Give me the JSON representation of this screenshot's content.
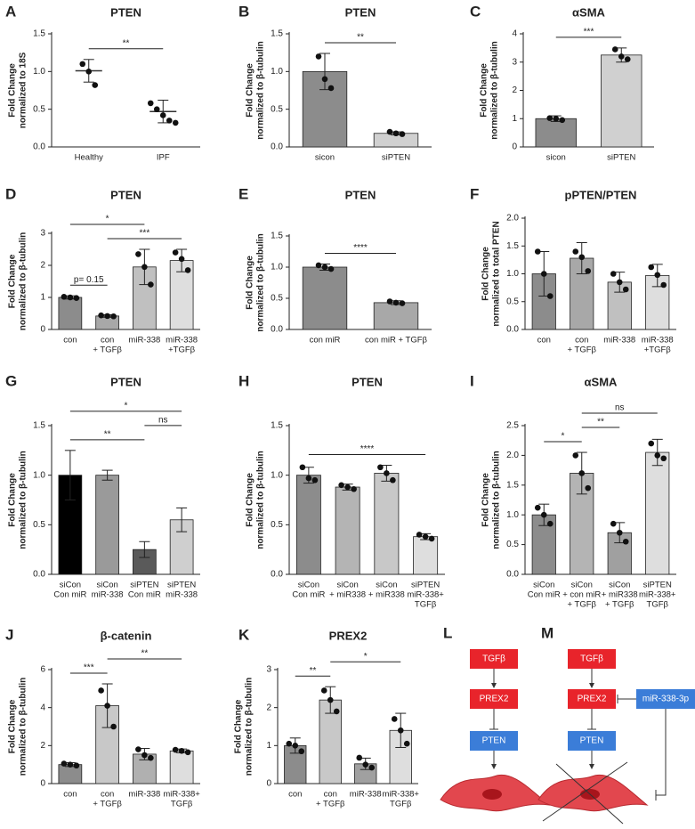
{
  "chart_data": [
    {
      "type": "dot",
      "panel": "A",
      "title": "PTEN",
      "ylabel": [
        "Fold Change",
        "normalized to 18S"
      ],
      "categories": [
        [
          "Healthy"
        ],
        [
          "IPF"
        ]
      ],
      "values": [
        1.01,
        0.47
      ],
      "errors": [
        0.15,
        0.15
      ],
      "points": [
        [
          1.1,
          1.0,
          0.82
        ],
        [
          0.58,
          0.5,
          0.42,
          0.35,
          0.32
        ]
      ],
      "colors": [
        "#333333",
        "#333333"
      ],
      "ylim": [
        0,
        1.5
      ],
      "yticks": [
        {
          "value": 0,
          "label": "0.0"
        },
        0.5,
        {
          "value": 1,
          "label": "1.0"
        },
        1.5
      ],
      "annotations": [
        {
          "text": "**",
          "between": [
            0,
            1
          ]
        }
      ]
    },
    {
      "type": "bar",
      "panel": "B",
      "title": "PTEN",
      "ylabel": [
        "Fold Change",
        "normalized to β-tubulin"
      ],
      "categories": [
        [
          "sicon"
        ],
        [
          "siPTEN"
        ]
      ],
      "values": [
        1.0,
        0.18
      ],
      "errors": [
        0.24,
        0.02
      ],
      "points": [
        [
          1.2,
          0.9,
          0.78
        ],
        [
          0.2,
          0.18,
          0.17
        ]
      ],
      "colors": [
        "#8c8c8c",
        "#d0d0d0"
      ],
      "ylim": [
        0,
        1.5
      ],
      "yticks": [
        {
          "value": 0,
          "label": "0.0"
        },
        0.5,
        {
          "value": 1,
          "label": "1.0"
        },
        1.5
      ],
      "annotations": [
        {
          "text": "**",
          "between": [
            0,
            1
          ]
        }
      ]
    },
    {
      "type": "bar",
      "panel": "C",
      "title": "αSMA",
      "ylabel": [
        "Fold Change",
        "normalized to β-tubulin"
      ],
      "categories": [
        [
          "sicon"
        ],
        [
          "siPTEN"
        ]
      ],
      "values": [
        1.0,
        3.25
      ],
      "errors": [
        0.1,
        0.25
      ],
      "points": [
        [
          1.02,
          1.0,
          0.95
        ],
        [
          3.45,
          3.2,
          3.1
        ]
      ],
      "colors": [
        "#8c8c8c",
        "#d0d0d0"
      ],
      "ylim": [
        0,
        4
      ],
      "yticks": [
        0,
        1,
        2,
        3,
        4
      ],
      "annotations": [
        {
          "text": "***",
          "between": [
            0,
            1
          ]
        }
      ]
    },
    {
      "type": "bar",
      "panel": "D",
      "title": "PTEN",
      "ylabel": [
        "Fold Change",
        "normalized to β-tubulin"
      ],
      "categories": [
        [
          "con"
        ],
        [
          "con",
          "+ TGFβ"
        ],
        [
          "miR-338"
        ],
        [
          "miR-338",
          "+TGFβ"
        ]
      ],
      "values": [
        1.0,
        0.42,
        1.95,
        2.15
      ],
      "errors": [
        0.05,
        0.04,
        0.55,
        0.35
      ],
      "points": [
        [
          1.02,
          1.0,
          0.98
        ],
        [
          0.44,
          0.42,
          0.41
        ],
        [
          2.35,
          1.95,
          1.4
        ],
        [
          2.4,
          2.2,
          1.85
        ]
      ],
      "colors": [
        "#8c8c8c",
        "#a8a8a8",
        "#c0c0c0",
        "#dedede"
      ],
      "ylim": [
        0,
        3
      ],
      "yticks": [
        0,
        1,
        2,
        3
      ],
      "annotations": [
        {
          "text": "p= 0.15",
          "between": [
            0,
            1
          ]
        },
        {
          "text": "***",
          "between": [
            1,
            3
          ]
        },
        {
          "text": "*",
          "between": [
            0,
            2
          ]
        }
      ]
    },
    {
      "type": "bar",
      "panel": "E",
      "title": "PTEN",
      "ylabel": [
        "Fold Change",
        "normalized to β-tubulin"
      ],
      "categories": [
        [
          "con miR"
        ],
        [
          "con miR + TGFβ"
        ]
      ],
      "values": [
        1.0,
        0.43
      ],
      "errors": [
        0.05,
        0.03
      ],
      "points": [
        [
          1.03,
          1.0,
          0.97
        ],
        [
          0.45,
          0.43,
          0.42
        ]
      ],
      "colors": [
        "#8c8c8c",
        "#a8a8a8"
      ],
      "ylim": [
        0,
        1.5
      ],
      "yticks": [
        {
          "value": 0,
          "label": "0.0"
        },
        0.5,
        {
          "value": 1,
          "label": "1.0"
        },
        1.5
      ],
      "annotations": [
        {
          "text": "****",
          "between": [
            0,
            1
          ]
        }
      ]
    },
    {
      "type": "bar",
      "panel": "F",
      "title": "pPTEN/PTEN",
      "ylabel": [
        "Fold Change",
        "normalized to total PTEN"
      ],
      "categories": [
        [
          "con"
        ],
        [
          "con",
          "+ TGFβ"
        ],
        [
          "miR-338"
        ],
        [
          "miR-338",
          "+TGFβ"
        ]
      ],
      "values": [
        1.0,
        1.28,
        0.85,
        0.97
      ],
      "errors": [
        0.4,
        0.28,
        0.18,
        0.2
      ],
      "points": [
        [
          1.4,
          1.0,
          0.6
        ],
        [
          1.4,
          1.3,
          1.05
        ],
        [
          1.0,
          0.85,
          0.72
        ],
        [
          1.12,
          0.98,
          0.8
        ]
      ],
      "colors": [
        "#8c8c8c",
        "#a8a8a8",
        "#c0c0c0",
        "#dedede"
      ],
      "ylim": [
        0,
        2
      ],
      "yticks": [
        {
          "value": 0,
          "label": "0.0"
        },
        0.5,
        {
          "value": 1,
          "label": "1.0"
        },
        1.5,
        {
          "value": 2,
          "label": "2.0"
        }
      ],
      "annotations": []
    },
    {
      "type": "bar",
      "panel": "G",
      "title": "PTEN",
      "ylabel": [
        "Fold Change",
        "normalized to β-tubulin"
      ],
      "categories": [
        [
          "siCon",
          "Con miR"
        ],
        [
          "siCon",
          "miR-338"
        ],
        [
          "siPTEN",
          "Con miR"
        ],
        [
          "siPTEN",
          "miR-338"
        ]
      ],
      "values": [
        1.0,
        1.0,
        0.25,
        0.55
      ],
      "errors": [
        0.25,
        0.05,
        0.08,
        0.12
      ],
      "colors": [
        "#000000",
        "#9a9a9a",
        "#5a5a5a",
        "#cfcfcf"
      ],
      "ylim": [
        0,
        1.5
      ],
      "yticks": [
        {
          "value": 0,
          "label": "0.0"
        },
        0.5,
        {
          "value": 1,
          "label": "1.0"
        },
        1.5
      ],
      "annotations": [
        {
          "text": "**",
          "between": [
            0,
            2
          ]
        },
        {
          "text": "ns",
          "between": [
            2,
            3
          ]
        },
        {
          "text": "*",
          "between": [
            0,
            3
          ]
        }
      ]
    },
    {
      "type": "bar",
      "panel": "H",
      "title": "PTEN",
      "ylabel": [
        "Fold Change",
        "normalized to β-tubulin"
      ],
      "categories": [
        [
          "siCon",
          "Con miR"
        ],
        [
          "siCon",
          "+ miR338"
        ],
        [
          "siCon",
          "+ miR338"
        ],
        [
          "siPTEN",
          "miR-338+",
          "TGFβ"
        ]
      ],
      "values": [
        1.0,
        0.88,
        1.02,
        0.38
      ],
      "errors": [
        0.08,
        0.03,
        0.08,
        0.03
      ],
      "points": [
        [
          1.08,
          0.97,
          0.95
        ],
        [
          0.9,
          0.88,
          0.86
        ],
        [
          1.08,
          1.02,
          0.95
        ],
        [
          0.4,
          0.38,
          0.36
        ]
      ],
      "colors": [
        "#8c8c8c",
        "#b4b4b4",
        "#c8c8c8",
        "#dedede"
      ],
      "ylim": [
        0,
        1.5
      ],
      "yticks": [
        {
          "value": 0,
          "label": "0.0"
        },
        0.5,
        {
          "value": 1,
          "label": "1.0"
        },
        1.5
      ],
      "annotations": [
        {
          "text": "****",
          "between": [
            0,
            3
          ]
        }
      ]
    },
    {
      "type": "bar",
      "panel": "I",
      "title": "αSMA",
      "ylabel": [
        "Fold Change",
        "normalized to β-tubulin"
      ],
      "categories": [
        [
          "siCon",
          "Con miR"
        ],
        [
          "siCon",
          "+ con miR",
          "+ TGFβ"
        ],
        [
          "siCon",
          "+ miR338",
          "+ TGFβ"
        ],
        [
          "siPTEN",
          "miR-338+",
          "TGFβ"
        ]
      ],
      "values": [
        1.0,
        1.7,
        0.7,
        2.05
      ],
      "errors": [
        0.18,
        0.35,
        0.17,
        0.22
      ],
      "points": [
        [
          1.12,
          1.0,
          0.85
        ],
        [
          2.0,
          1.7,
          1.45
        ],
        [
          0.85,
          0.7,
          0.55
        ],
        [
          2.2,
          2.0,
          1.95
        ]
      ],
      "colors": [
        "#8c8c8c",
        "#b4b4b4",
        "#a0a0a0",
        "#dedede"
      ],
      "ylim": [
        0,
        2.5
      ],
      "yticks": [
        {
          "value": 0,
          "label": "0.0"
        },
        0.5,
        {
          "value": 1,
          "label": "1.0"
        },
        1.5,
        {
          "value": 2,
          "label": "2.0"
        },
        2.5
      ],
      "annotations": [
        {
          "text": "*",
          "between": [
            0,
            1
          ]
        },
        {
          "text": "**",
          "between": [
            1,
            2
          ]
        },
        {
          "text": "ns",
          "between": [
            1,
            3
          ]
        }
      ]
    },
    {
      "type": "bar",
      "panel": "J",
      "title": "β-catenin",
      "ylabel": [
        "Fold Change",
        "normalized to β-tubulin"
      ],
      "categories": [
        [
          "con"
        ],
        [
          "con",
          "+ TGFβ"
        ],
        [
          "miR-338"
        ],
        [
          "miR-338+",
          "TGFβ"
        ]
      ],
      "values": [
        1.0,
        4.1,
        1.55,
        1.72
      ],
      "errors": [
        0.1,
        1.15,
        0.3,
        0.1
      ],
      "points": [
        [
          1.05,
          1.0,
          0.95
        ],
        [
          4.9,
          4.1,
          3.0
        ],
        [
          1.8,
          1.5,
          1.35
        ],
        [
          1.78,
          1.72,
          1.65
        ]
      ],
      "colors": [
        "#8c8c8c",
        "#c8c8c8",
        "#b0b0b0",
        "#dedede"
      ],
      "ylim": [
        0,
        6
      ],
      "yticks": [
        0,
        2,
        4,
        6
      ],
      "annotations": [
        {
          "text": "***",
          "between": [
            0,
            1
          ]
        },
        {
          "text": "**",
          "between": [
            1,
            3
          ]
        }
      ]
    },
    {
      "type": "bar",
      "panel": "K",
      "title": "PREX2",
      "ylabel": [
        "Fold Change",
        "normalized to β-tubulin"
      ],
      "categories": [
        [
          "con"
        ],
        [
          "con",
          "+ TGFβ"
        ],
        [
          "miR-338"
        ],
        [
          "miR-338+",
          "TGFβ"
        ]
      ],
      "values": [
        1.0,
        2.2,
        0.52,
        1.4
      ],
      "errors": [
        0.2,
        0.35,
        0.15,
        0.45
      ],
      "points": [
        [
          1.05,
          1.0,
          0.85
        ],
        [
          2.45,
          2.2,
          1.9
        ],
        [
          0.68,
          0.5,
          0.42
        ],
        [
          1.7,
          1.4,
          1.05
        ]
      ],
      "colors": [
        "#8c8c8c",
        "#c8c8c8",
        "#a0a0a0",
        "#dedede"
      ],
      "ylim": [
        0,
        3
      ],
      "yticks": [
        0,
        1,
        2,
        3
      ],
      "annotations": [
        {
          "text": "**",
          "between": [
            0,
            1
          ]
        },
        {
          "text": "*",
          "between": [
            1,
            3
          ]
        }
      ]
    }
  ],
  "diagrams": [
    {
      "panel": "L",
      "nodes": [
        "TGFβ",
        "PREX2",
        "PTEN"
      ],
      "colors": [
        "#e8242b",
        "#e8242b",
        "#3b7dd8"
      ]
    },
    {
      "panel": "M",
      "nodes": [
        "TGFβ",
        "PREX2",
        "PTEN",
        "miR-338-3p"
      ],
      "colors": [
        "#e8242b",
        "#e8242b",
        "#3b7dd8",
        "#3b7dd8"
      ]
    }
  ]
}
